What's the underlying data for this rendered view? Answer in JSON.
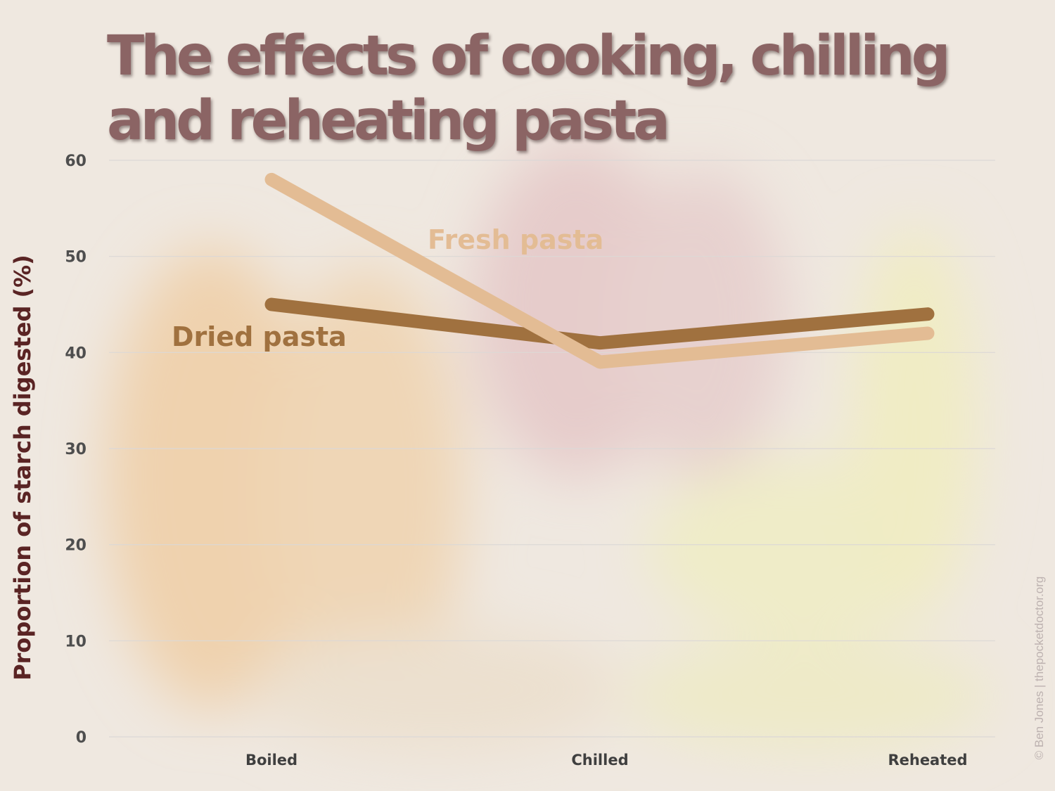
{
  "title": "The effects of cooking, chilling and reheating pasta",
  "credit": "© Ben Jones | thepocketdoctor.org",
  "colors": {
    "background": "#efe8e0",
    "title": "#8b6464",
    "ylabel": "#5a2424",
    "dried": "#a0713f",
    "fresh": "#e3bc94",
    "grid": "#dcd8d6"
  },
  "chart_data": {
    "type": "line",
    "title": "The effects of cooking, chilling and reheating pasta",
    "xlabel": "",
    "ylabel": "Proportion of starch digested (%)",
    "categories": [
      "Boiled",
      "Chilled",
      "Reheated"
    ],
    "ylim": [
      0,
      60
    ],
    "yticks": [
      0,
      10,
      20,
      30,
      40,
      50,
      60
    ],
    "grid": true,
    "legend": "inline labels",
    "series": [
      {
        "name": "Dried pasta",
        "values": [
          45,
          41,
          44
        ],
        "color": "#a0713f"
      },
      {
        "name": "Fresh pasta",
        "values": [
          58,
          39,
          42
        ],
        "color": "#e3bc94"
      }
    ]
  }
}
